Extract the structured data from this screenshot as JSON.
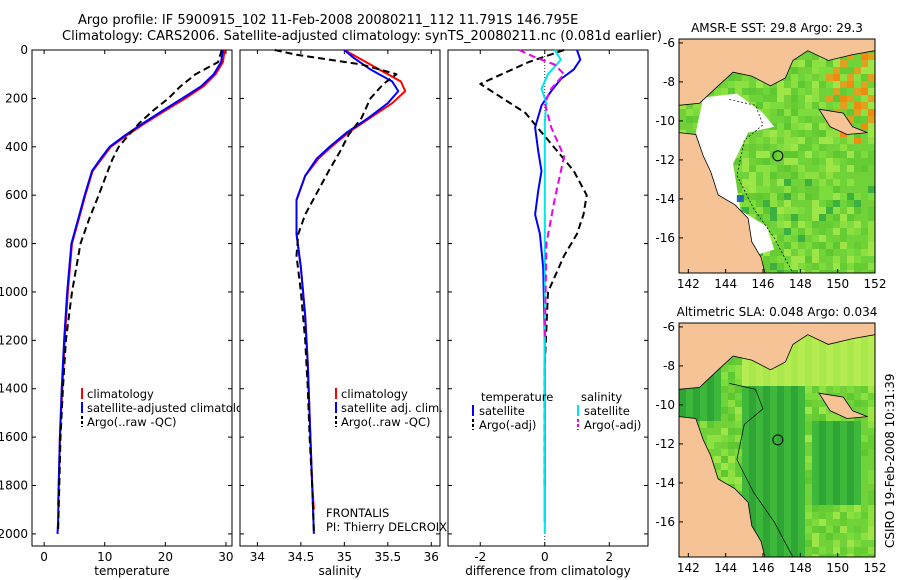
{
  "header": {
    "line1": "Argo profile: IF 5900915_102 11-Feb-2008 20080211_112 11.791S 146.795E",
    "line2": "Climatology: CARS2006. Satellite-adjusted climatology: synTS_20080211.nc (0.081d earlier)"
  },
  "colors": {
    "climatology": "#ff0000",
    "satellite": "#0000ff",
    "argo": "#000000",
    "satellite_salinity_diff": "#00e5ee",
    "argo_salinity_diff": "#ee00ee",
    "land": "#f5c396",
    "ocean_green": "#6fd43a"
  },
  "chart_data": [
    {
      "type": "line",
      "id": "temperature",
      "xlabel": "temperature",
      "ylabel": "",
      "xlim": [
        -2,
        31
      ],
      "ylim": [
        2050,
        0
      ],
      "xticks": [
        0,
        10,
        20,
        30
      ],
      "yticks": [
        0,
        200,
        400,
        600,
        800,
        1000,
        1200,
        1400,
        1600,
        1800,
        2000
      ],
      "legend": [
        "climatology",
        "satellite-adjusted climatology",
        "Argo(..raw -QC)"
      ],
      "series": [
        {
          "name": "climatology",
          "style": "solid",
          "color": "#ff0000",
          "x": [
            29.8,
            29.5,
            28.3,
            26.3,
            23.3,
            20.0,
            16.8,
            13.8,
            11.0,
            9.5,
            8.0,
            6.8,
            5.7,
            4.6,
            3.9,
            3.4,
            3.0,
            2.6,
            2.4,
            2.3
          ],
          "y": [
            0,
            50,
            100,
            150,
            200,
            250,
            300,
            350,
            400,
            450,
            500,
            600,
            700,
            800,
            1000,
            1200,
            1400,
            1600,
            1800,
            1880
          ]
        },
        {
          "name": "satellite-adjusted climatology",
          "style": "solid",
          "color": "#0000ff",
          "x": [
            29.5,
            29.2,
            28.0,
            25.9,
            22.8,
            19.6,
            16.5,
            13.5,
            10.8,
            9.3,
            7.9,
            6.7,
            5.6,
            4.5,
            3.8,
            3.3,
            2.9,
            2.6,
            2.4,
            2.3,
            2.2
          ],
          "y": [
            0,
            50,
            100,
            150,
            200,
            250,
            300,
            350,
            400,
            450,
            500,
            600,
            700,
            800,
            1000,
            1200,
            1400,
            1600,
            1800,
            1950,
            2000
          ]
        },
        {
          "name": "Argo(..raw -QC)",
          "style": "dashed",
          "color": "#000000",
          "x": [
            29.3,
            28.7,
            25.0,
            22.5,
            20.5,
            18.0,
            15.8,
            14.0,
            12.3,
            11.3,
            10.5,
            9.0,
            7.4,
            6.0,
            4.6,
            3.6,
            3.1,
            2.7,
            2.5,
            2.3
          ],
          "y": [
            0,
            50,
            100,
            150,
            200,
            250,
            300,
            350,
            400,
            450,
            500,
            600,
            700,
            800,
            1000,
            1200,
            1400,
            1600,
            1800,
            1990
          ]
        }
      ]
    },
    {
      "type": "line",
      "id": "salinity",
      "xlabel": "salinity",
      "xlim": [
        33.8,
        36.1
      ],
      "ylim": [
        2050,
        0
      ],
      "xticks": [
        34,
        34.5,
        35,
        35.5,
        36
      ],
      "legend": [
        "climatology",
        "satellite adj. clim.",
        "Argo(..raw -QC)"
      ],
      "annotations": [
        "FRONTALIS",
        "PI: Thierry DELCROIX"
      ],
      "series": [
        {
          "name": "climatology",
          "style": "solid",
          "color": "#ff0000",
          "x": [
            35.0,
            35.15,
            35.4,
            35.65,
            35.7,
            35.55,
            35.3,
            35.05,
            34.85,
            34.7,
            34.55,
            34.45,
            34.45,
            34.5,
            34.55,
            34.58,
            34.61,
            34.63,
            34.65
          ],
          "y": [
            0,
            30,
            80,
            130,
            170,
            220,
            280,
            340,
            400,
            450,
            520,
            620,
            760,
            900,
            1100,
            1300,
            1600,
            1800,
            1900
          ]
        },
        {
          "name": "satellite adj. clim.",
          "style": "solid",
          "color": "#0000ff",
          "x": [
            35.0,
            35.1,
            35.3,
            35.55,
            35.62,
            35.5,
            35.28,
            35.03,
            34.83,
            34.68,
            34.55,
            34.45,
            34.45,
            34.5,
            34.55,
            34.58,
            34.61,
            34.63,
            34.65
          ],
          "y": [
            0,
            30,
            80,
            130,
            170,
            220,
            280,
            340,
            400,
            450,
            520,
            620,
            760,
            900,
            1100,
            1300,
            1600,
            1800,
            2000
          ]
        },
        {
          "name": "Argo(..raw -QC)",
          "style": "dashed",
          "color": "#000000",
          "x": [
            34.2,
            34.45,
            35.2,
            35.6,
            35.45,
            35.3,
            35.2,
            35.05,
            34.95,
            34.82,
            34.7,
            34.55,
            34.47,
            34.45,
            34.5,
            34.55,
            34.58,
            34.6,
            34.63,
            34.65
          ],
          "y": [
            0,
            20,
            60,
            100,
            140,
            200,
            280,
            350,
            420,
            500,
            580,
            680,
            760,
            850,
            1000,
            1200,
            1400,
            1600,
            1800,
            1990
          ]
        }
      ]
    },
    {
      "type": "line",
      "id": "difference",
      "xlabel": "difference from climatology",
      "xlim": [
        -3,
        3.2
      ],
      "ylim": [
        2050,
        0
      ],
      "xticks": [
        -2,
        0,
        2
      ],
      "legend_groups": [
        {
          "title": "temperature",
          "items": [
            "satellite",
            "Argo(-adj)"
          ]
        },
        {
          "title": "salinity",
          "items": [
            "satellite",
            "Argo(-adj)"
          ]
        }
      ],
      "series": [
        {
          "name": "temperature satellite",
          "style": "solid",
          "color": "#0000ff",
          "x": [
            1.0,
            1.1,
            0.9,
            0.5,
            0.2,
            -0.1,
            -0.3,
            -0.2,
            -0.1,
            -0.2,
            -0.3,
            -0.15,
            -0.05,
            0.0,
            0.0,
            0.0
          ],
          "y": [
            0,
            40,
            80,
            120,
            170,
            230,
            320,
            420,
            500,
            580,
            680,
            760,
            900,
            1200,
            1600,
            1950
          ]
        },
        {
          "name": "temperature Argo(-adj)",
          "style": "dashed",
          "color": "#000000",
          "x": [
            0.6,
            -0.5,
            -2.0,
            -1.3,
            -0.6,
            -0.1,
            0.4,
            0.9,
            1.3,
            1.2,
            1.0,
            0.6,
            0.1,
            0.0,
            0.0
          ],
          "y": [
            0,
            50,
            140,
            200,
            260,
            340,
            420,
            500,
            600,
            680,
            760,
            850,
            1000,
            1300,
            1800
          ]
        },
        {
          "name": "salinity satellite",
          "style": "solid",
          "color": "#00e5ee",
          "x": [
            0.3,
            0.5,
            0.1,
            -0.1,
            0.05,
            0.0,
            0.0,
            0.0,
            0.0,
            0.0
          ],
          "y": [
            0,
            40,
            100,
            160,
            220,
            300,
            500,
            900,
            1400,
            2000
          ]
        },
        {
          "name": "salinity Argo(-adj)",
          "style": "dashed",
          "color": "#ee00ee",
          "x": [
            -0.8,
            -0.3,
            0.3,
            0.6,
            0.2,
            0.0,
            0.2,
            0.6,
            0.3,
            0.05,
            0.0
          ],
          "y": [
            0,
            30,
            60,
            100,
            160,
            220,
            320,
            440,
            620,
            800,
            1200
          ]
        }
      ]
    },
    {
      "type": "heatmap",
      "id": "sst-map",
      "title": "AMSR-E SST: 29.8  Argo: 29.3",
      "xlim": [
        141.5,
        152
      ],
      "ylim": [
        -17.8,
        -5.8
      ],
      "xticks": [
        142,
        144,
        146,
        148,
        150,
        152
      ],
      "yticks": [
        -6,
        -8,
        -10,
        -12,
        -14,
        -16
      ],
      "marker": {
        "lon": 146.795,
        "lat": -11.791
      }
    },
    {
      "type": "heatmap",
      "id": "sla-map",
      "title": "Altimetric SLA: 0.048  Argo: 0.034",
      "xlim": [
        141.5,
        152
      ],
      "ylim": [
        -17.8,
        -5.8
      ],
      "xticks": [
        142,
        144,
        146,
        148,
        150,
        152
      ],
      "yticks": [
        -6,
        -8,
        -10,
        -12,
        -14,
        -16
      ],
      "marker": {
        "lon": 146.795,
        "lat": -11.791
      }
    }
  ],
  "side_label": "CSIRO  19-Feb-2008 10:31:39"
}
